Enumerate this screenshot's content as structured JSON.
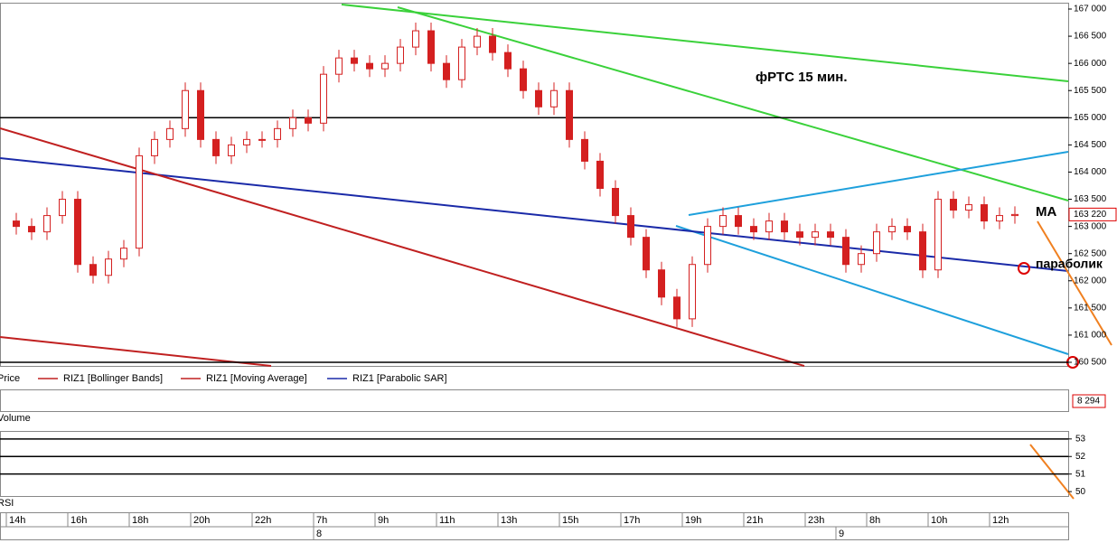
{
  "chart_data": {
    "type": "candlestick",
    "title": "фРТС   15 мин.",
    "categories": [
      "14h",
      null,
      null,
      null,
      "16h",
      null,
      null,
      null,
      "18h",
      null,
      null,
      null,
      "20h",
      null,
      null,
      null,
      "22h",
      null,
      null,
      null,
      "7h",
      null,
      null,
      null,
      "9h",
      null,
      null,
      null,
      "11h",
      null,
      null,
      null,
      "13h",
      null,
      null,
      null,
      "15h",
      null,
      null,
      null,
      "17h",
      null,
      null,
      null,
      "19h",
      null,
      null,
      null,
      "21h",
      null,
      null,
      null,
      "23h",
      null,
      null,
      null,
      "8h",
      null,
      null,
      null,
      "10h",
      null,
      null,
      null,
      "12h",
      null
    ],
    "dates": [
      null,
      null,
      null,
      null,
      null,
      null,
      null,
      null,
      null,
      null,
      null,
      null,
      null,
      null,
      null,
      null,
      null,
      null,
      null,
      null,
      "8",
      null,
      null,
      null,
      null,
      null,
      null,
      null,
      null,
      null,
      null,
      null,
      null,
      null,
      null,
      null,
      null,
      null,
      null,
      null,
      null,
      null,
      null,
      null,
      null,
      null,
      null,
      null,
      null,
      null,
      null,
      null,
      null,
      null,
      "9",
      null,
      null,
      null,
      null,
      null,
      null,
      null,
      null,
      null,
      null,
      null
    ],
    "open": [
      163100,
      163000,
      162900,
      163200,
      163500,
      162300,
      162100,
      162400,
      162600,
      164300,
      164600,
      164800,
      165500,
      164600,
      164300,
      164500,
      164600,
      164600,
      164800,
      165000,
      164900,
      165800,
      166100,
      166000,
      165900,
      166000,
      166300,
      166600,
      166000,
      165700,
      166300,
      166500,
      166200,
      165900,
      165500,
      165200,
      165500,
      164600,
      164200,
      163700,
      163200,
      162800,
      162200,
      161700,
      161300,
      162300,
      163000,
      163200,
      163000,
      162900,
      163100,
      162900,
      162800,
      162900,
      162800,
      162300,
      162500,
      162900,
      163000,
      162900,
      162200,
      163500,
      163300,
      163400,
      163100,
      163200
    ],
    "high": [
      163250,
      163150,
      163350,
      163650,
      163650,
      162450,
      162550,
      162750,
      164450,
      164750,
      164950,
      165650,
      165650,
      164750,
      164650,
      164750,
      164750,
      164950,
      165150,
      165150,
      165950,
      166250,
      166250,
      166150,
      166150,
      166450,
      166750,
      166750,
      166150,
      166450,
      166650,
      166650,
      166350,
      166050,
      165650,
      165650,
      165650,
      164750,
      164350,
      163850,
      163350,
      162950,
      162350,
      161850,
      162450,
      163150,
      163350,
      163350,
      163150,
      163250,
      163250,
      163050,
      163050,
      163050,
      162950,
      162650,
      163050,
      163150,
      163150,
      163050,
      163650,
      163650,
      163550,
      163550,
      163350,
      163370
    ],
    "low": [
      162850,
      162750,
      162750,
      163050,
      162150,
      161950,
      161950,
      162250,
      162450,
      164150,
      164450,
      164650,
      164450,
      164150,
      164150,
      164350,
      164450,
      164450,
      164650,
      164750,
      164750,
      165650,
      165850,
      165750,
      165750,
      165850,
      166150,
      165850,
      165550,
      165550,
      166150,
      166050,
      165750,
      165350,
      165050,
      165050,
      164450,
      164050,
      163550,
      163050,
      162650,
      162050,
      161550,
      161150,
      161150,
      162150,
      162850,
      162850,
      162750,
      162750,
      162750,
      162650,
      162650,
      162650,
      162150,
      162150,
      162350,
      162750,
      162750,
      162050,
      162050,
      163150,
      163150,
      162950,
      162950,
      163050
    ],
    "close": [
      163000,
      162900,
      163200,
      163500,
      162300,
      162100,
      162400,
      162600,
      164300,
      164600,
      164800,
      165500,
      164600,
      164300,
      164500,
      164600,
      164600,
      164800,
      165000,
      164900,
      165800,
      166100,
      166000,
      165900,
      166000,
      166300,
      166600,
      166000,
      165700,
      166300,
      166500,
      166200,
      165900,
      165500,
      165200,
      165500,
      164600,
      164200,
      163700,
      163200,
      162800,
      162200,
      161700,
      161300,
      162300,
      163000,
      163200,
      163000,
      162900,
      163100,
      162900,
      162800,
      162900,
      162800,
      162300,
      162500,
      162900,
      163000,
      162900,
      162200,
      163500,
      163300,
      163400,
      163100,
      163200,
      163220
    ],
    "last_value": 163220,
    "last_value_label": "163 220",
    "color": "#d42020",
    "ylim": [
      160500,
      167000
    ],
    "yticks": [
      {
        "value": 167000,
        "label": "167 000"
      },
      {
        "value": 166500,
        "label": "166 500"
      },
      {
        "value": 166000,
        "label": "166 000"
      },
      {
        "value": 165500,
        "label": "165 500"
      },
      {
        "value": 165000,
        "label": "165 000"
      },
      {
        "value": 164500,
        "label": "164 500"
      },
      {
        "value": 164000,
        "label": "164 000"
      },
      {
        "value": 163500,
        "label": "163 500"
      },
      {
        "value": 163000,
        "label": "163 000"
      },
      {
        "value": 162500,
        "label": "162 500"
      },
      {
        "value": 162000,
        "label": "162 000"
      },
      {
        "value": 161500,
        "label": "161 500"
      },
      {
        "value": 161000,
        "label": "161 000"
      },
      {
        "value": 160500,
        "label": "160 500"
      }
    ],
    "hlines": [
      165000,
      160500
    ],
    "annotations": [
      "MA",
      "параболик"
    ],
    "legend": [
      "Price",
      "RIZ1 [Bollinger Bands]",
      "RIZ1 [Moving Average]",
      "RIZ1 [Parabolic SAR]"
    ],
    "volume": {
      "label": "Volume",
      "value": 8294,
      "value_label": "8 294"
    },
    "rsi": {
      "label": "RSI",
      "ylim": [
        49.8,
        53.3
      ],
      "yticks": [
        53,
        52,
        51,
        50
      ],
      "hlines": [
        53,
        52,
        51
      ]
    }
  }
}
